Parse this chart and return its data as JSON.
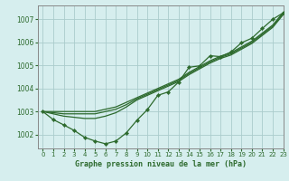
{
  "title": "Graphe pression niveau de la mer (hPa)",
  "background_color": "#d6eeee",
  "grid_color": "#aacccc",
  "line_color": "#2d6a2d",
  "marker_color": "#2d6a2d",
  "xlim": [
    -0.5,
    23
  ],
  "ylim": [
    1001.4,
    1007.6
  ],
  "yticks": [
    1002,
    1003,
    1004,
    1005,
    1006,
    1007
  ],
  "xticks": [
    0,
    1,
    2,
    3,
    4,
    5,
    6,
    7,
    8,
    9,
    10,
    11,
    12,
    13,
    14,
    15,
    16,
    17,
    18,
    19,
    20,
    21,
    22,
    23
  ],
  "series_upper": [
    1003.0,
    1003.0,
    1003.0,
    1003.0,
    1003.0,
    1003.0,
    1003.1,
    1003.2,
    1003.4,
    1003.6,
    1003.8,
    1004.0,
    1004.2,
    1004.4,
    1004.7,
    1004.95,
    1005.2,
    1005.4,
    1005.55,
    1005.8,
    1006.05,
    1006.4,
    1006.75,
    1007.3
  ],
  "series_mid1": [
    1003.0,
    1002.95,
    1002.9,
    1002.9,
    1002.9,
    1002.9,
    1003.0,
    1003.1,
    1003.3,
    1003.55,
    1003.75,
    1003.95,
    1004.15,
    1004.35,
    1004.65,
    1004.9,
    1005.15,
    1005.35,
    1005.5,
    1005.75,
    1006.0,
    1006.35,
    1006.7,
    1007.25
  ],
  "series_mid2": [
    1003.0,
    1002.9,
    1002.8,
    1002.75,
    1002.7,
    1002.7,
    1002.8,
    1002.95,
    1003.2,
    1003.5,
    1003.7,
    1003.9,
    1004.1,
    1004.3,
    1004.6,
    1004.85,
    1005.1,
    1005.3,
    1005.45,
    1005.7,
    1005.95,
    1006.3,
    1006.65,
    1007.2
  ],
  "series_low_markers": [
    1003.0,
    1002.65,
    1002.42,
    1002.18,
    1001.88,
    1001.72,
    1001.6,
    1001.72,
    1002.08,
    1002.62,
    1003.08,
    1003.7,
    1003.85,
    1004.28,
    1004.92,
    1004.98,
    1005.42,
    1005.38,
    1005.58,
    1005.98,
    1006.18,
    1006.6,
    1007.0,
    1007.28
  ]
}
